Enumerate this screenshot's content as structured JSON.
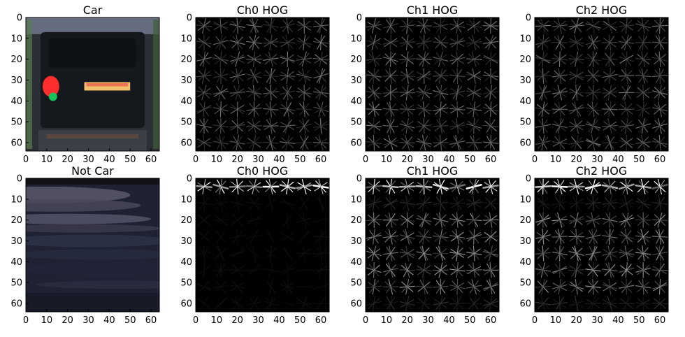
{
  "chart_data": {
    "type": "heatmap",
    "rows": 2,
    "cols": 4,
    "panels": [
      {
        "title": "Car",
        "kind": "image",
        "subject": "car",
        "xticks": [
          0,
          10,
          20,
          30,
          40,
          50,
          60
        ],
        "yticks": [
          0,
          10,
          20,
          30,
          40,
          50,
          60
        ],
        "xlim": [
          0,
          64
        ],
        "ylim": [
          64,
          0
        ]
      },
      {
        "title": "Ch0 HOG",
        "kind": "hog",
        "xticks": [
          0,
          10,
          20,
          30,
          40,
          50,
          60
        ],
        "yticks": [
          0,
          10,
          20,
          30,
          40,
          50,
          60
        ],
        "xlim": [
          0,
          64
        ],
        "ylim": [
          64,
          0
        ]
      },
      {
        "title": "Ch1 HOG",
        "kind": "hog",
        "xticks": [
          0,
          10,
          20,
          30,
          40,
          50,
          60
        ],
        "yticks": [
          0,
          10,
          20,
          30,
          40,
          50,
          60
        ],
        "xlim": [
          0,
          64
        ],
        "ylim": [
          64,
          0
        ]
      },
      {
        "title": "Ch2 HOG",
        "kind": "hog",
        "xticks": [
          0,
          10,
          20,
          30,
          40,
          50,
          60
        ],
        "yticks": [
          0,
          10,
          20,
          30,
          40,
          50,
          60
        ],
        "xlim": [
          0,
          64
        ],
        "ylim": [
          64,
          0
        ]
      },
      {
        "title": "Not Car",
        "kind": "image",
        "subject": "road",
        "xticks": [
          0,
          10,
          20,
          30,
          40,
          50,
          60
        ],
        "yticks": [
          0,
          10,
          20,
          30,
          40,
          50,
          60
        ],
        "xlim": [
          0,
          64
        ],
        "ylim": [
          64,
          0
        ]
      },
      {
        "title": "Ch0 HOG",
        "kind": "hog",
        "xticks": [
          0,
          10,
          20,
          30,
          40,
          50,
          60
        ],
        "yticks": [
          0,
          10,
          20,
          30,
          40,
          50,
          60
        ],
        "xlim": [
          0,
          64
        ],
        "ylim": [
          64,
          0
        ]
      },
      {
        "title": "Ch1 HOG",
        "kind": "hog",
        "xticks": [
          0,
          10,
          20,
          30,
          40,
          50,
          60
        ],
        "yticks": [
          0,
          10,
          20,
          30,
          40,
          50,
          60
        ],
        "xlim": [
          0,
          64
        ],
        "ylim": [
          64,
          0
        ]
      },
      {
        "title": "Ch2 HOG",
        "kind": "hog",
        "xticks": [
          0,
          10,
          20,
          30,
          40,
          50,
          60
        ],
        "yticks": [
          0,
          10,
          20,
          30,
          40,
          50,
          60
        ],
        "xlim": [
          0,
          64
        ],
        "ylim": [
          64,
          0
        ]
      }
    ]
  }
}
